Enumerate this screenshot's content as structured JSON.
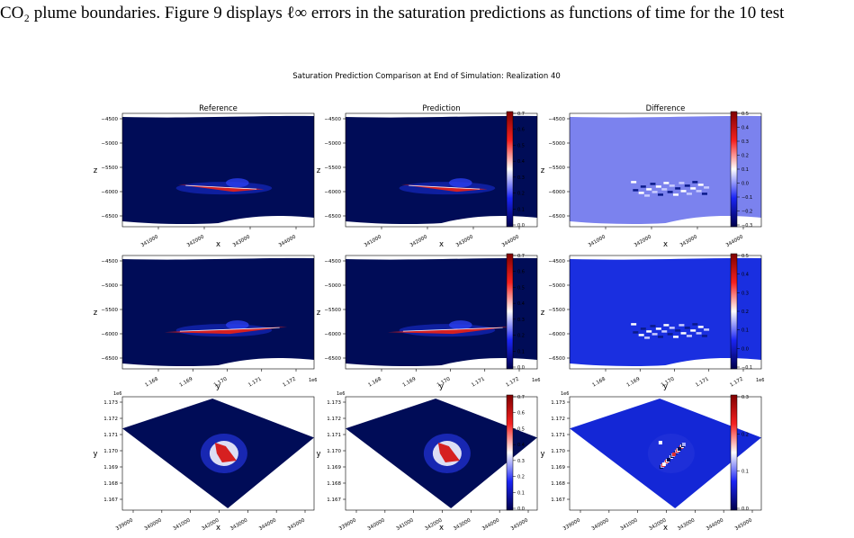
{
  "caption_text": "CO₂ plume boundaries. Figure 9 displays ℓ∞ errors in the saturation predictions as functions of time for the 10 test",
  "figure": {
    "suptitle": "Saturation Prediction Comparison at End of Simulation: Realization 40",
    "column_titles": [
      "Reference",
      "Prediction",
      "Difference"
    ],
    "colors": {
      "background_low": "#000c57",
      "diff_bg_row1": "#7b82ee",
      "diff_bg_row2": "#1a2fe0",
      "diff_bg_row3": "#1427d6",
      "plume_red": "#d62020",
      "plume_white": "#f4f4ff"
    },
    "rows": [
      {
        "view": "xz",
        "xlabel": "x",
        "ylabel": "z",
        "y_ticks": [
          "−4500",
          "−5000",
          "−5500",
          "−6000",
          "−6500"
        ],
        "x_ticks": [
          "341000",
          "342000",
          "343000",
          "344000"
        ],
        "x_offset": ""
      },
      {
        "view": "yz",
        "xlabel": "y",
        "ylabel": "z",
        "y_ticks": [
          "−4500",
          "−5000",
          "−5500",
          "−6000",
          "−6500"
        ],
        "x_ticks": [
          "1.168",
          "1.169",
          "1.170",
          "1.171",
          "1.172"
        ],
        "x_offset": "1e6"
      },
      {
        "view": "xy",
        "xlabel": "x",
        "ylabel": "y",
        "y_ticks": [
          "1.173",
          "1.172",
          "1.171",
          "1.170",
          "1.169",
          "1.168",
          "1.167"
        ],
        "y_offset": "1e6",
        "x_ticks": [
          "339000",
          "340000",
          "341000",
          "342000",
          "343000",
          "344000",
          "345000"
        ],
        "x_offset": ""
      }
    ],
    "colorbars": [
      {
        "row": 1,
        "col": 2,
        "ticks": [
          "0.7",
          "0.6",
          "0.5",
          "0.4",
          "0.3",
          "0.2",
          "0.1",
          "0.0"
        ],
        "range": [
          0.0,
          0.7
        ]
      },
      {
        "row": 1,
        "col": 3,
        "ticks": [
          "0.5",
          "0.4",
          "0.3",
          "0.2",
          "0.1",
          "0.0",
          "−0.1",
          "−0.2",
          "−0.3"
        ],
        "range": [
          -0.3,
          0.55
        ]
      },
      {
        "row": 2,
        "col": 2,
        "ticks": [
          "0.7",
          "0.6",
          "0.5",
          "0.4",
          "0.3",
          "0.2",
          "0.1",
          "0.0"
        ],
        "range": [
          0.0,
          0.7
        ]
      },
      {
        "row": 2,
        "col": 3,
        "ticks": [
          "0.5",
          "0.4",
          "0.3",
          "0.2",
          "0.1",
          "0.0",
          "−0.1"
        ],
        "range": [
          -0.15,
          0.55
        ]
      },
      {
        "row": 3,
        "col": 2,
        "ticks": [
          "0.7",
          "0.6",
          "0.5",
          "0.4",
          "0.3",
          "0.2",
          "0.1",
          "0.0"
        ],
        "range": [
          0.0,
          0.7
        ]
      },
      {
        "row": 3,
        "col": 3,
        "ticks": [
          "0.3",
          "0.2",
          "0.1",
          "0.0"
        ],
        "range": [
          -0.08,
          0.38
        ]
      }
    ]
  }
}
